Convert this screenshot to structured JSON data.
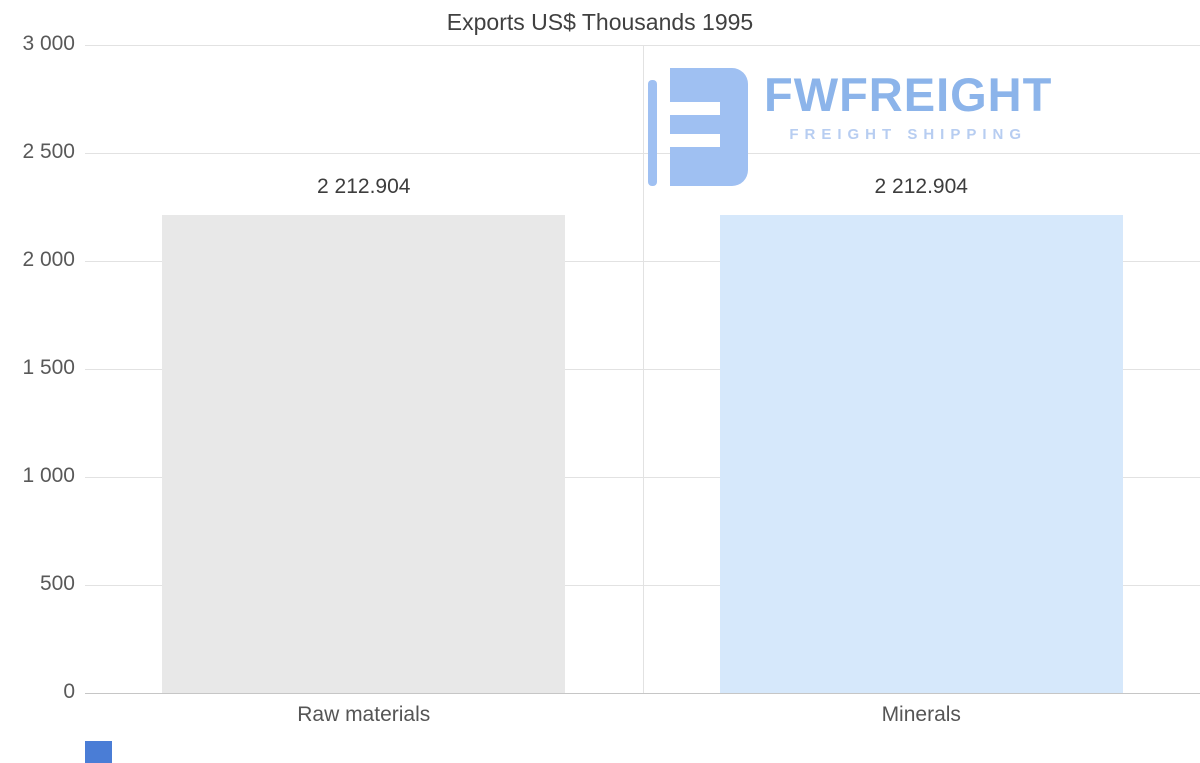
{
  "page": {
    "background": "#ffffff"
  },
  "chart_data": {
    "type": "bar",
    "title": "Exports US$ Thousands 1995",
    "categories": [
      "Raw materials",
      "Minerals"
    ],
    "values": [
      2212.904,
      2212.904
    ],
    "value_labels": [
      "2 212.904",
      "2 212.904"
    ],
    "bar_colors": [
      "#e8e8e8",
      "#d6e8fb"
    ],
    "ylim": [
      0,
      3000
    ],
    "yticks": [
      0,
      500,
      1000,
      1500,
      2000,
      2500,
      3000
    ],
    "ytick_labels": [
      "0",
      "500",
      "1 000",
      "1 500",
      "2 000",
      "2 500",
      "3 000"
    ],
    "grid": true,
    "legend": false,
    "xlabel": "",
    "ylabel": ""
  },
  "watermark": {
    "brand": "FWFREIGHT",
    "tagline": "FREIGHT SHIPPING",
    "brand_color": "#8cb4ea",
    "tagline_color": "#b7cdf1",
    "logo_color": "#9fc0f2"
  },
  "accent": {
    "corner_color": "#4a7dd6"
  }
}
